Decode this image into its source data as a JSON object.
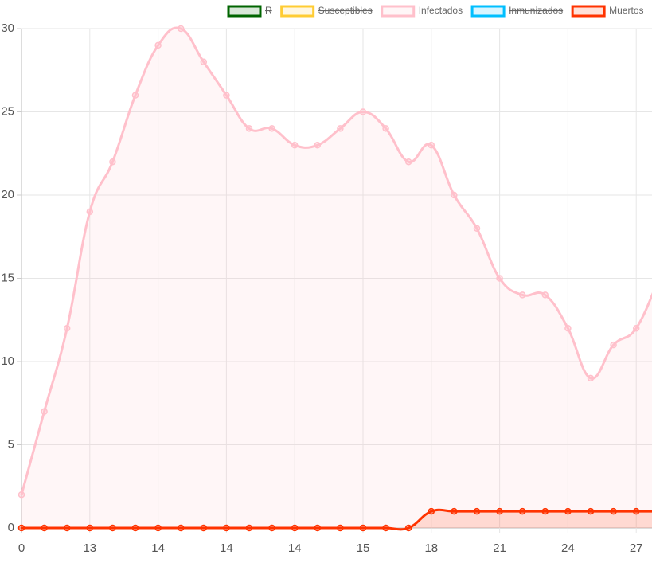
{
  "chart_data": {
    "type": "line",
    "categories": [
      "0",
      null,
      null,
      "13",
      null,
      null,
      "14",
      null,
      null,
      "14",
      null,
      null,
      "14",
      null,
      null,
      "15",
      null,
      null,
      "18",
      null,
      null,
      "21",
      null,
      null,
      "24",
      null,
      null,
      "27",
      null
    ],
    "series": [
      {
        "name": "R",
        "color": "#006400",
        "hidden": true
      },
      {
        "name": "Susceptibles",
        "color": "#ffcc33",
        "hidden": true
      },
      {
        "name": "Infectados",
        "color": "#ffc0cb",
        "values": [
          2,
          7,
          12,
          19,
          22,
          26,
          29,
          30,
          28,
          26,
          24,
          24,
          23,
          23,
          24,
          25,
          24,
          22,
          23,
          20,
          18,
          15,
          14,
          14,
          12,
          9,
          11,
          12,
          15
        ]
      },
      {
        "name": "Inmunizados",
        "color": "#00bfff",
        "hidden": true
      },
      {
        "name": "Muertos",
        "color": "#ff3300",
        "values": [
          0,
          0,
          0,
          0,
          0,
          0,
          0,
          0,
          0,
          0,
          0,
          0,
          0,
          0,
          0,
          0,
          0,
          0,
          1,
          1,
          1,
          1,
          1,
          1,
          1,
          1,
          1,
          1,
          1
        ]
      }
    ],
    "ylim": [
      0,
      30
    ],
    "yticks": [
      0,
      5,
      10,
      15,
      20,
      25,
      30
    ],
    "grid": true,
    "legend": "top"
  }
}
